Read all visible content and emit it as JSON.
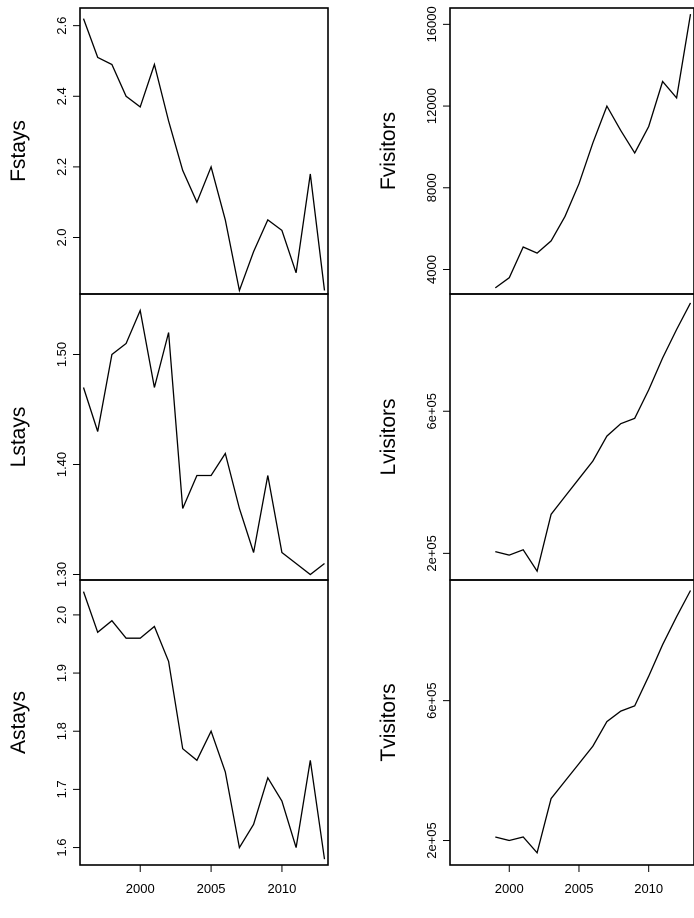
{
  "chart_data": [
    {
      "type": "line",
      "ylabel": "Fstays",
      "x": [
        1996,
        1997,
        1998,
        1999,
        2000,
        2001,
        2002,
        2003,
        2004,
        2005,
        2006,
        2007,
        2008,
        2009,
        2010,
        2011,
        2012,
        2013
      ],
      "values": [
        2.62,
        2.51,
        2.49,
        2.4,
        2.37,
        2.49,
        2.33,
        2.19,
        2.1,
        2.2,
        2.05,
        1.85,
        1.96,
        2.05,
        2.02,
        1.9,
        2.18,
        1.85
      ],
      "yticks": [
        "2.0",
        "2.2",
        "2.4",
        "2.6"
      ],
      "ylim": [
        1.84,
        2.65
      ]
    },
    {
      "type": "line",
      "ylabel": "Lstays",
      "x": [
        1996,
        1997,
        1998,
        1999,
        2000,
        2001,
        2002,
        2003,
        2004,
        2005,
        2006,
        2007,
        2008,
        2009,
        2010,
        2011,
        2012,
        2013
      ],
      "values": [
        1.47,
        1.43,
        1.5,
        1.51,
        1.54,
        1.47,
        1.52,
        1.36,
        1.39,
        1.39,
        1.41,
        1.36,
        1.32,
        1.39,
        1.32,
        1.31,
        1.3,
        1.31
      ],
      "yticks": [
        "1.30",
        "1.40",
        "1.50"
      ],
      "ylim": [
        1.295,
        1.555
      ]
    },
    {
      "type": "line",
      "ylabel": "Astays",
      "x": [
        1996,
        1997,
        1998,
        1999,
        2000,
        2001,
        2002,
        2003,
        2004,
        2005,
        2006,
        2007,
        2008,
        2009,
        2010,
        2011,
        2012,
        2013
      ],
      "values": [
        2.04,
        1.97,
        1.99,
        1.96,
        1.96,
        1.98,
        1.92,
        1.77,
        1.75,
        1.8,
        1.73,
        1.6,
        1.64,
        1.72,
        1.68,
        1.6,
        1.75,
        1.58
      ],
      "yticks": [
        "1.6",
        "1.7",
        "1.8",
        "1.9",
        "2.0"
      ],
      "ylim": [
        1.57,
        2.06
      ]
    },
    {
      "type": "line",
      "ylabel": "Fvisitors",
      "x": [
        1999,
        2000,
        2001,
        2002,
        2003,
        2004,
        2005,
        2006,
        2007,
        2008,
        2009,
        2010,
        2011,
        2012,
        2013
      ],
      "values": [
        3100,
        3600,
        5100,
        4800,
        5400,
        6600,
        8200,
        10200,
        12000,
        10800,
        9700,
        11000,
        13200,
        12400,
        16500
      ],
      "yticks": [
        "4000",
        "8000",
        "12000",
        "16000"
      ],
      "ylim": [
        2800,
        16800
      ]
    },
    {
      "type": "line",
      "ylabel": "Lvisitors",
      "x": [
        1999,
        2000,
        2001,
        2002,
        2003,
        2004,
        2005,
        2006,
        2007,
        2008,
        2009,
        2010,
        2011,
        2012,
        2013
      ],
      "values": [
        205000,
        195000,
        210000,
        150000,
        310000,
        360000,
        410000,
        460000,
        530000,
        565000,
        580000,
        660000,
        750000,
        830000,
        905000
      ],
      "yticks": [
        "2e+05",
        "6e+05"
      ],
      "ylim": [
        125000,
        930000
      ]
    },
    {
      "type": "line",
      "ylabel": "Tvisitors",
      "x": [
        1999,
        2000,
        2001,
        2002,
        2003,
        2004,
        2005,
        2006,
        2007,
        2008,
        2009,
        2010,
        2011,
        2012,
        2013
      ],
      "values": [
        210000,
        200000,
        210000,
        165000,
        320000,
        370000,
        420000,
        470000,
        540000,
        570000,
        585000,
        670000,
        760000,
        840000,
        915000
      ],
      "yticks": [
        "2e+05",
        "6e+05"
      ],
      "ylim": [
        130000,
        945000
      ]
    }
  ],
  "xticks": [
    "2000",
    "2005",
    "2010"
  ],
  "xtick_values": [
    2000,
    2005,
    2010
  ],
  "xlim": [
    1995.75,
    2013.25
  ]
}
